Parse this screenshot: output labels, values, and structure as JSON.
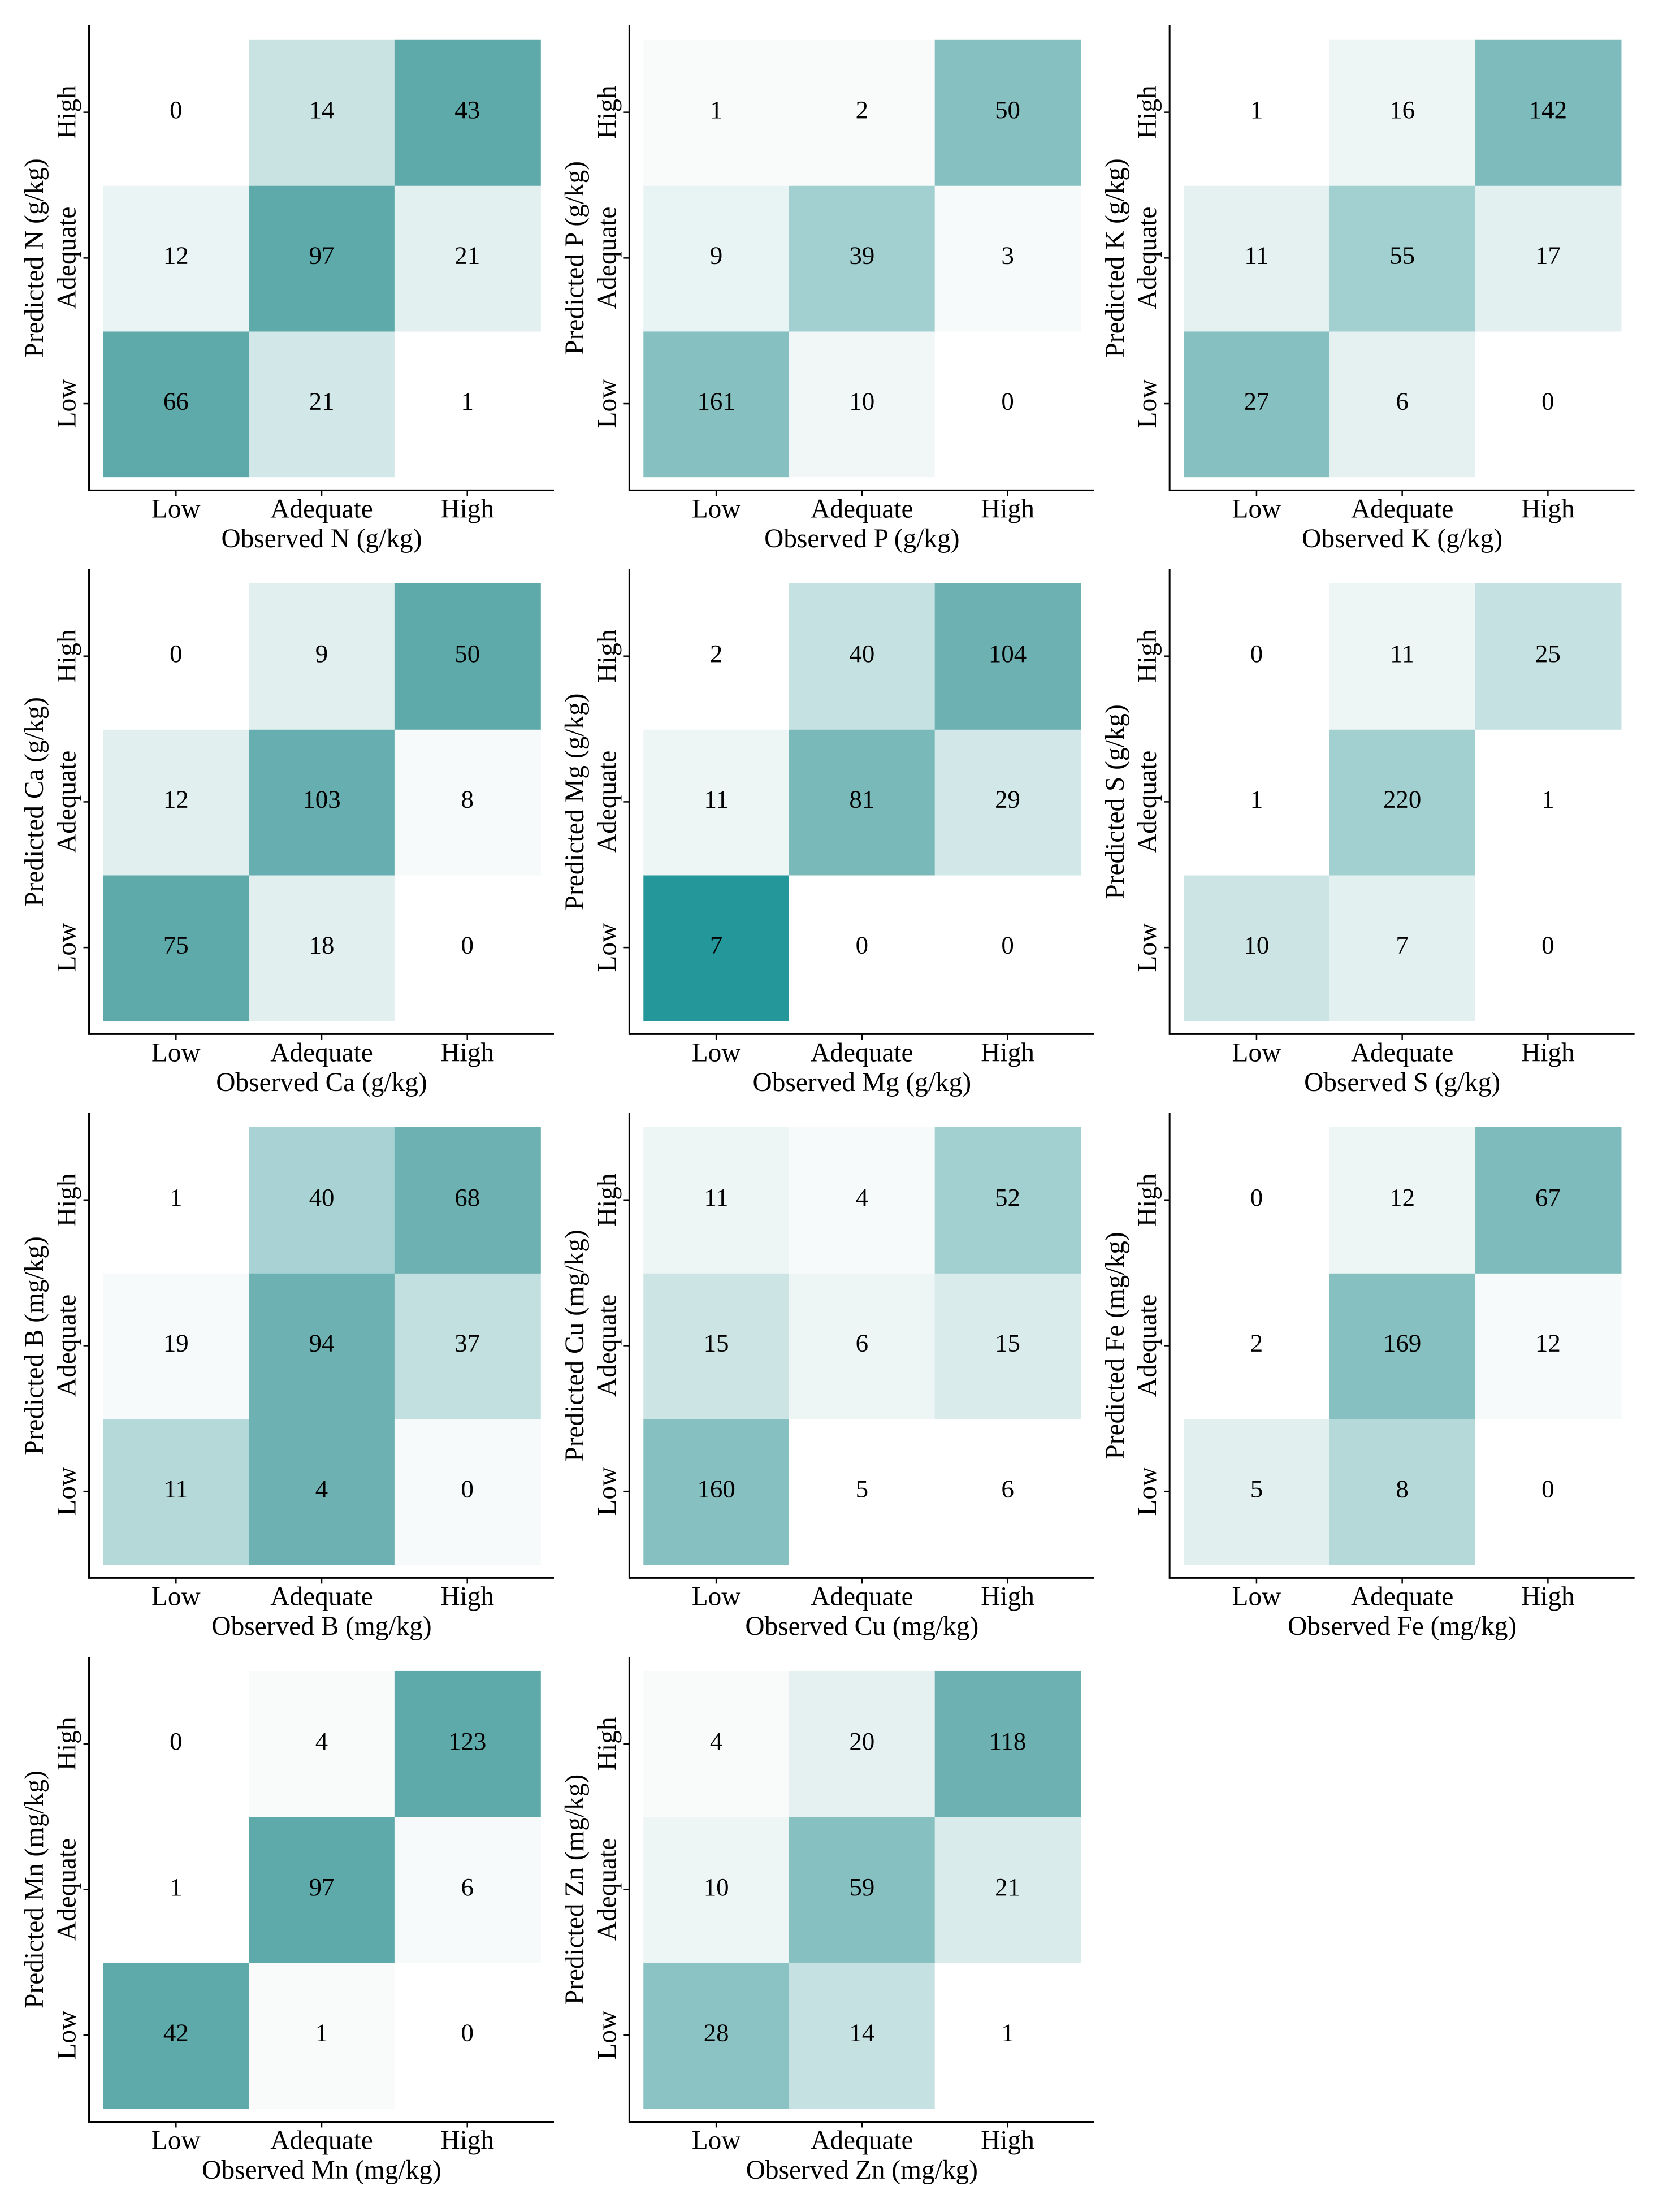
{
  "chart_data": [
    {
      "type": "heatmap",
      "x_label": "Observed N (g/kg)",
      "y_label": "Predicted N (g/kg)",
      "x_categories": [
        "Low",
        "Adequate",
        "High"
      ],
      "y_categories": [
        "Low",
        "Adequate",
        "High"
      ],
      "values": [
        [
          66,
          21,
          1
        ],
        [
          12,
          97,
          21
        ],
        [
          0,
          14,
          43
        ]
      ],
      "colors": [
        [
          "#5eaaab",
          "#d2e7e7",
          "#ffffff"
        ],
        [
          "#eaf4f4",
          "#5eaaab",
          "#e3f0f0"
        ],
        [
          "#ffffff",
          "#c9e3e3",
          "#5eaaab"
        ]
      ]
    },
    {
      "type": "heatmap",
      "x_label": "Observed P (g/kg)",
      "y_label": "Predicted P (g/kg)",
      "x_categories": [
        "Low",
        "Adequate",
        "High"
      ],
      "y_categories": [
        "Low",
        "Adequate",
        "High"
      ],
      "values": [
        [
          161,
          10,
          0
        ],
        [
          9,
          39,
          3
        ],
        [
          1,
          2,
          50
        ]
      ],
      "colors": [
        [
          "#87c0c1",
          "#f1f7f7",
          "#ffffff"
        ],
        [
          "#e8f3f3",
          "#a2cfd0",
          "#f7fafa"
        ],
        [
          "#f9fbfb",
          "#f9fbfb",
          "#87c0c1"
        ]
      ]
    },
    {
      "type": "heatmap",
      "x_label": "Observed K (g/kg)",
      "y_label": "Predicted K (g/kg)",
      "x_categories": [
        "Low",
        "Adequate",
        "High"
      ],
      "y_categories": [
        "Low",
        "Adequate",
        "High"
      ],
      "values": [
        [
          27,
          6,
          0
        ],
        [
          11,
          55,
          17
        ],
        [
          1,
          16,
          142
        ]
      ],
      "colors": [
        [
          "#87c0c1",
          "#e5f1f1",
          "#ffffff"
        ],
        [
          "#e5f1f1",
          "#a2cfd0",
          "#e3f0f0"
        ],
        [
          "#ffffff",
          "#edf5f5",
          "#7ebbbc"
        ]
      ]
    },
    {
      "type": "heatmap",
      "x_label": "Observed Ca (g/kg)",
      "y_label": "Predicted Ca (g/kg)",
      "x_categories": [
        "Low",
        "Adequate",
        "High"
      ],
      "y_categories": [
        "Low",
        "Adequate",
        "High"
      ],
      "values": [
        [
          75,
          18,
          0
        ],
        [
          12,
          103,
          8
        ],
        [
          0,
          9,
          50
        ]
      ],
      "colors": [
        [
          "#5eaaab",
          "#e1efef",
          "#ffffff"
        ],
        [
          "#e1efef",
          "#66aeaf",
          "#f7fafa"
        ],
        [
          "#ffffff",
          "#e1efef",
          "#5eaaab"
        ]
      ]
    },
    {
      "type": "heatmap",
      "x_label": "Observed Mg (g/kg)",
      "y_label": "Predicted Mg (g/kg)",
      "x_categories": [
        "Low",
        "Adequate",
        "High"
      ],
      "y_categories": [
        "Low",
        "Adequate",
        "High"
      ],
      "values": [
        [
          7,
          0,
          0
        ],
        [
          11,
          81,
          29
        ],
        [
          2,
          40,
          104
        ]
      ],
      "colors": [
        [
          "#23979a",
          "#ffffff",
          "#ffffff"
        ],
        [
          "#edf5f5",
          "#7ab9ba",
          "#d2e7e7"
        ],
        [
          "#ffffff",
          "#c6e1e1",
          "#6db1b2"
        ]
      ]
    },
    {
      "type": "heatmap",
      "x_label": "Observed S (g/kg)",
      "y_label": "Predicted S (g/kg)",
      "x_categories": [
        "Low",
        "Adequate",
        "High"
      ],
      "y_categories": [
        "Low",
        "Adequate",
        "High"
      ],
      "values": [
        [
          10,
          7,
          0
        ],
        [
          1,
          220,
          1
        ],
        [
          0,
          11,
          25
        ]
      ],
      "colors": [
        [
          "#cde4e4",
          "#e3f0f0",
          "#ffffff"
        ],
        [
          "#ffffff",
          "#a2cfd0",
          "#ffffff"
        ],
        [
          "#ffffff",
          "#edf5f5",
          "#c6e1e1"
        ]
      ]
    },
    {
      "type": "heatmap",
      "x_label": "Observed B (mg/kg)",
      "y_label": "Predicted B (mg/kg)",
      "x_categories": [
        "Low",
        "Adequate",
        "High"
      ],
      "y_categories": [
        "Low",
        "Adequate",
        "High"
      ],
      "values": [
        [
          11,
          4,
          0
        ],
        [
          19,
          94,
          37
        ],
        [
          1,
          40,
          68
        ]
      ],
      "colors": [
        [
          "#b5d8d9",
          "#6db1b2",
          "#f7fafa"
        ],
        [
          "#f7fafa",
          "#6db1b2",
          "#c3e0e0"
        ],
        [
          "#ffffff",
          "#a8d2d3",
          "#6db1b2"
        ]
      ]
    },
    {
      "type": "heatmap",
      "x_label": "Observed Cu (mg/kg)",
      "y_label": "Predicted Cu (mg/kg)",
      "x_categories": [
        "Low",
        "Adequate",
        "High"
      ],
      "y_categories": [
        "Low",
        "Adequate",
        "High"
      ],
      "values": [
        [
          160,
          5,
          6
        ],
        [
          15,
          6,
          15
        ],
        [
          11,
          4,
          52
        ]
      ],
      "colors": [
        [
          "#87c0c1",
          "#ffffff",
          "#ffffff"
        ],
        [
          "#cde4e4",
          "#edf5f5",
          "#d9ebeb"
        ],
        [
          "#edf5f5",
          "#f7fafa",
          "#a2cfd0"
        ]
      ]
    },
    {
      "type": "heatmap",
      "x_label": "Observed Fe (mg/kg)",
      "y_label": "Predicted Fe (mg/kg)",
      "x_categories": [
        "Low",
        "Adequate",
        "High"
      ],
      "y_categories": [
        "Low",
        "Adequate",
        "High"
      ],
      "values": [
        [
          5,
          8,
          0
        ],
        [
          2,
          169,
          12
        ],
        [
          0,
          12,
          67
        ]
      ],
      "colors": [
        [
          "#e1efef",
          "#b5d8d9",
          "#ffffff"
        ],
        [
          "#ffffff",
          "#87c0c1",
          "#f7fafa"
        ],
        [
          "#ffffff",
          "#edf5f5",
          "#7ebbbc"
        ]
      ]
    },
    {
      "type": "heatmap",
      "x_label": "Observed Mn (mg/kg)",
      "y_label": "Predicted Mn (mg/kg)",
      "x_categories": [
        "Low",
        "Adequate",
        "High"
      ],
      "y_categories": [
        "Low",
        "Adequate",
        "High"
      ],
      "values": [
        [
          42,
          1,
          0
        ],
        [
          1,
          97,
          6
        ],
        [
          0,
          4,
          123
        ]
      ],
      "colors": [
        [
          "#5eaaab",
          "#f9fbfb",
          "#ffffff"
        ],
        [
          "#ffffff",
          "#5eaaab",
          "#f7fafa"
        ],
        [
          "#ffffff",
          "#f9fbfb",
          "#5eaaab"
        ]
      ]
    },
    {
      "type": "heatmap",
      "x_label": "Observed Zn (mg/kg)",
      "y_label": "Predicted Zn (mg/kg)",
      "x_categories": [
        "Low",
        "Adequate",
        "High"
      ],
      "y_categories": [
        "Low",
        "Adequate",
        "High"
      ],
      "values": [
        [
          28,
          14,
          1
        ],
        [
          10,
          59,
          21
        ],
        [
          4,
          20,
          118
        ]
      ],
      "colors": [
        [
          "#8bc2c3",
          "#c6e1e1",
          "#ffffff"
        ],
        [
          "#edf5f5",
          "#87c0c1",
          "#d9ebeb"
        ],
        [
          "#f9fbfb",
          "#e5f1f1",
          "#6db1b2"
        ]
      ]
    }
  ]
}
